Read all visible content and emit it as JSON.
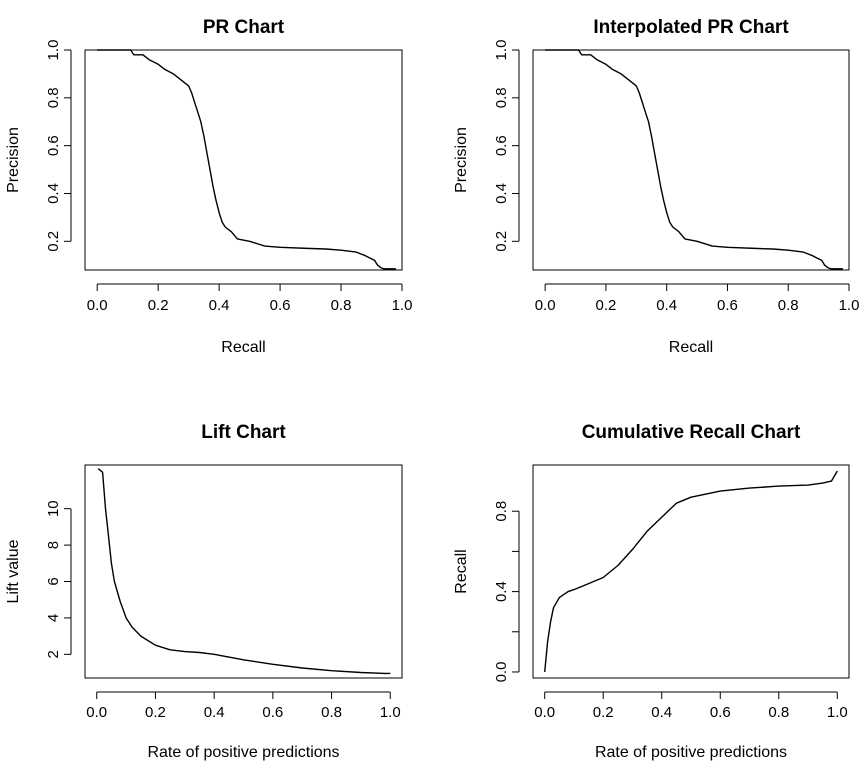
{
  "chart_data": [
    {
      "type": "line",
      "title": "PR Chart",
      "xlabel": "Recall",
      "ylabel": "Precision",
      "xlim": [
        -0.04,
        1.0
      ],
      "ylim": [
        0.08,
        1.0
      ],
      "xticks": [
        0.0,
        0.2,
        0.4,
        0.6,
        0.8,
        1.0
      ],
      "xticklabels": [
        "0.0",
        "0.2",
        "0.4",
        "0.6",
        "0.8",
        "1.0"
      ],
      "yticks": [
        0.2,
        0.4,
        0.6,
        0.8,
        1.0
      ],
      "yticklabels": [
        "0.2",
        "0.4",
        "0.6",
        "0.8",
        "1.0"
      ],
      "grid": false,
      "series": [
        {
          "x": [
            0.0,
            0.06,
            0.11,
            0.12,
            0.15,
            0.17,
            0.2,
            0.22,
            0.25,
            0.28,
            0.3,
            0.31,
            0.32,
            0.33,
            0.34,
            0.35,
            0.36,
            0.37,
            0.38,
            0.39,
            0.4,
            0.41,
            0.42,
            0.44,
            0.46,
            0.5,
            0.55,
            0.6,
            0.7,
            0.75,
            0.8,
            0.85,
            0.88,
            0.91,
            0.92,
            0.93,
            0.94,
            0.98
          ],
          "y": [
            1.0,
            1.0,
            1.0,
            0.98,
            0.98,
            0.96,
            0.94,
            0.92,
            0.9,
            0.87,
            0.85,
            0.82,
            0.78,
            0.74,
            0.7,
            0.64,
            0.57,
            0.5,
            0.43,
            0.37,
            0.32,
            0.28,
            0.26,
            0.24,
            0.21,
            0.2,
            0.18,
            0.175,
            0.17,
            0.168,
            0.163,
            0.155,
            0.14,
            0.12,
            0.1,
            0.09,
            0.085,
            0.085
          ]
        }
      ]
    },
    {
      "type": "line",
      "title": "Interpolated PR Chart",
      "xlabel": "Recall",
      "ylabel": "Precision",
      "xlim": [
        -0.04,
        1.0
      ],
      "ylim": [
        0.08,
        1.0
      ],
      "xticks": [
        0.0,
        0.2,
        0.4,
        0.6,
        0.8,
        1.0
      ],
      "xticklabels": [
        "0.0",
        "0.2",
        "0.4",
        "0.6",
        "0.8",
        "1.0"
      ],
      "yticks": [
        0.2,
        0.4,
        0.6,
        0.8,
        1.0
      ],
      "yticklabels": [
        "0.2",
        "0.4",
        "0.6",
        "0.8",
        "1.0"
      ],
      "grid": false,
      "series": [
        {
          "x": [
            0.0,
            0.06,
            0.11,
            0.12,
            0.15,
            0.17,
            0.2,
            0.22,
            0.25,
            0.28,
            0.3,
            0.31,
            0.32,
            0.33,
            0.34,
            0.35,
            0.36,
            0.37,
            0.38,
            0.39,
            0.4,
            0.41,
            0.42,
            0.44,
            0.46,
            0.5,
            0.55,
            0.6,
            0.7,
            0.75,
            0.8,
            0.85,
            0.88,
            0.91,
            0.92,
            0.93,
            0.94,
            0.98
          ],
          "y": [
            1.0,
            1.0,
            1.0,
            0.98,
            0.98,
            0.96,
            0.94,
            0.92,
            0.9,
            0.87,
            0.85,
            0.82,
            0.78,
            0.74,
            0.7,
            0.64,
            0.57,
            0.5,
            0.43,
            0.37,
            0.32,
            0.28,
            0.26,
            0.24,
            0.21,
            0.2,
            0.18,
            0.175,
            0.17,
            0.168,
            0.163,
            0.155,
            0.14,
            0.12,
            0.1,
            0.09,
            0.085,
            0.085
          ]
        }
      ]
    },
    {
      "type": "line",
      "title": "Lift Chart",
      "xlabel": "Rate of positive predictions",
      "ylabel": "Lift value",
      "xlim": [
        -0.04,
        1.04
      ],
      "ylim": [
        0.7,
        12.4
      ],
      "xticks": [
        0.0,
        0.2,
        0.4,
        0.6,
        0.8,
        1.0
      ],
      "xticklabels": [
        "0.0",
        "0.2",
        "0.4",
        "0.6",
        "0.8",
        "1.0"
      ],
      "yticks": [
        2,
        4,
        6,
        8,
        10
      ],
      "yticklabels": [
        "2",
        "4",
        "6",
        "8",
        "10"
      ],
      "grid": false,
      "series": [
        {
          "x": [
            0.005,
            0.02,
            0.03,
            0.04,
            0.05,
            0.06,
            0.08,
            0.1,
            0.12,
            0.15,
            0.2,
            0.25,
            0.3,
            0.35,
            0.4,
            0.5,
            0.6,
            0.7,
            0.8,
            0.9,
            0.98,
            1.0
          ],
          "y": [
            12.2,
            12.0,
            10.0,
            8.5,
            7.0,
            6.0,
            4.9,
            4.0,
            3.5,
            3.0,
            2.5,
            2.25,
            2.15,
            2.1,
            2.0,
            1.7,
            1.45,
            1.25,
            1.1,
            1.0,
            0.95,
            0.95
          ]
        }
      ]
    },
    {
      "type": "line",
      "title": "Cumulative Recall Chart",
      "xlabel": "Rate of positive predictions",
      "ylabel": "Recall",
      "xlim": [
        -0.04,
        1.04
      ],
      "ylim": [
        -0.03,
        1.03
      ],
      "xticks": [
        0.0,
        0.2,
        0.4,
        0.6,
        0.8,
        1.0
      ],
      "xticklabels": [
        "0.0",
        "0.2",
        "0.4",
        "0.6",
        "0.8",
        "1.0"
      ],
      "yticks": [
        0.0,
        0.2,
        0.4,
        0.6,
        0.8
      ],
      "yticklabels": [
        "0.0",
        "",
        "0.4",
        "",
        "0.8"
      ],
      "grid": false,
      "series": [
        {
          "x": [
            0.0,
            0.01,
            0.02,
            0.03,
            0.05,
            0.08,
            0.1,
            0.15,
            0.2,
            0.25,
            0.3,
            0.35,
            0.4,
            0.45,
            0.5,
            0.6,
            0.7,
            0.8,
            0.9,
            0.95,
            0.98,
            1.0
          ],
          "y": [
            0.0,
            0.15,
            0.25,
            0.32,
            0.37,
            0.4,
            0.41,
            0.44,
            0.47,
            0.53,
            0.61,
            0.7,
            0.77,
            0.84,
            0.87,
            0.9,
            0.915,
            0.925,
            0.93,
            0.94,
            0.95,
            1.0
          ]
        }
      ]
    }
  ]
}
